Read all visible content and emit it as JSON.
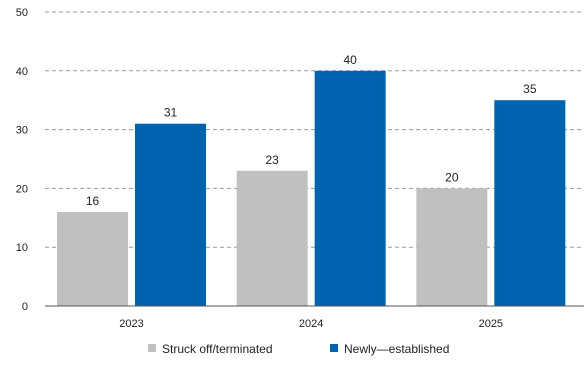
{
  "chart_data": {
    "type": "bar",
    "categories": [
      "2023",
      "2024",
      "2025"
    ],
    "series": [
      {
        "name": "Struck off/terminated",
        "values": [
          16,
          23,
          20
        ],
        "color": "#c0c0c0"
      },
      {
        "name": "Newly—established",
        "values": [
          31,
          40,
          35
        ],
        "color": "#0063af"
      }
    ],
    "ylim": [
      0,
      50
    ],
    "yticks": [
      0,
      10,
      20,
      30,
      40,
      50
    ],
    "grid": true,
    "legend_position": "bottom-center"
  }
}
